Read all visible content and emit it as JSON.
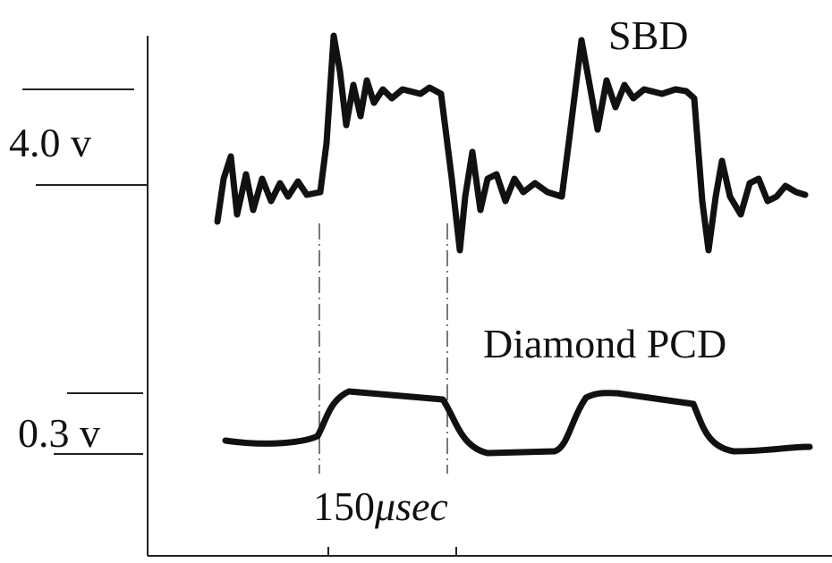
{
  "traces": {
    "top": {
      "label": "SBD",
      "scale": "4.0 v"
    },
    "bottom": {
      "label": "Diamond PCD",
      "scale": "0.3 v"
    }
  },
  "time_scale": {
    "number": "150",
    "unit": "μsec"
  }
}
